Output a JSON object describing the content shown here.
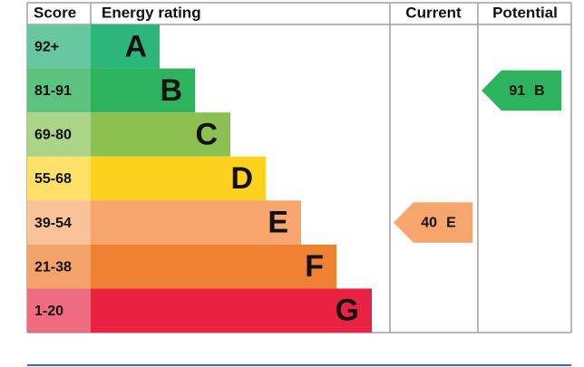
{
  "header": {
    "score": "Score",
    "rating": "Energy rating",
    "current": "Current",
    "potential": "Potential"
  },
  "bands": [
    {
      "score": "92+",
      "letter": "A",
      "color": "#2db67c",
      "light": "#67c7a0"
    },
    {
      "score": "81-91",
      "letter": "B",
      "color": "#2db35d",
      "light": "#5ec27f"
    },
    {
      "score": "69-80",
      "letter": "C",
      "color": "#8cc152",
      "light": "#abd488"
    },
    {
      "score": "55-68",
      "letter": "D",
      "color": "#fdd21e",
      "light": "#fde067"
    },
    {
      "score": "39-54",
      "letter": "E",
      "color": "#f6a56c",
      "light": "#f9c298"
    },
    {
      "score": "21-38",
      "letter": "F",
      "color": "#ef8232",
      "light": "#f3a36a"
    },
    {
      "score": "1-20",
      "letter": "G",
      "color": "#ea2241",
      "light": "#ef6b80"
    }
  ],
  "current": {
    "value": 40,
    "letter": "E",
    "color": "#f6a56c"
  },
  "potential": {
    "value": 91,
    "letter": "B",
    "color": "#2db35d"
  }
}
